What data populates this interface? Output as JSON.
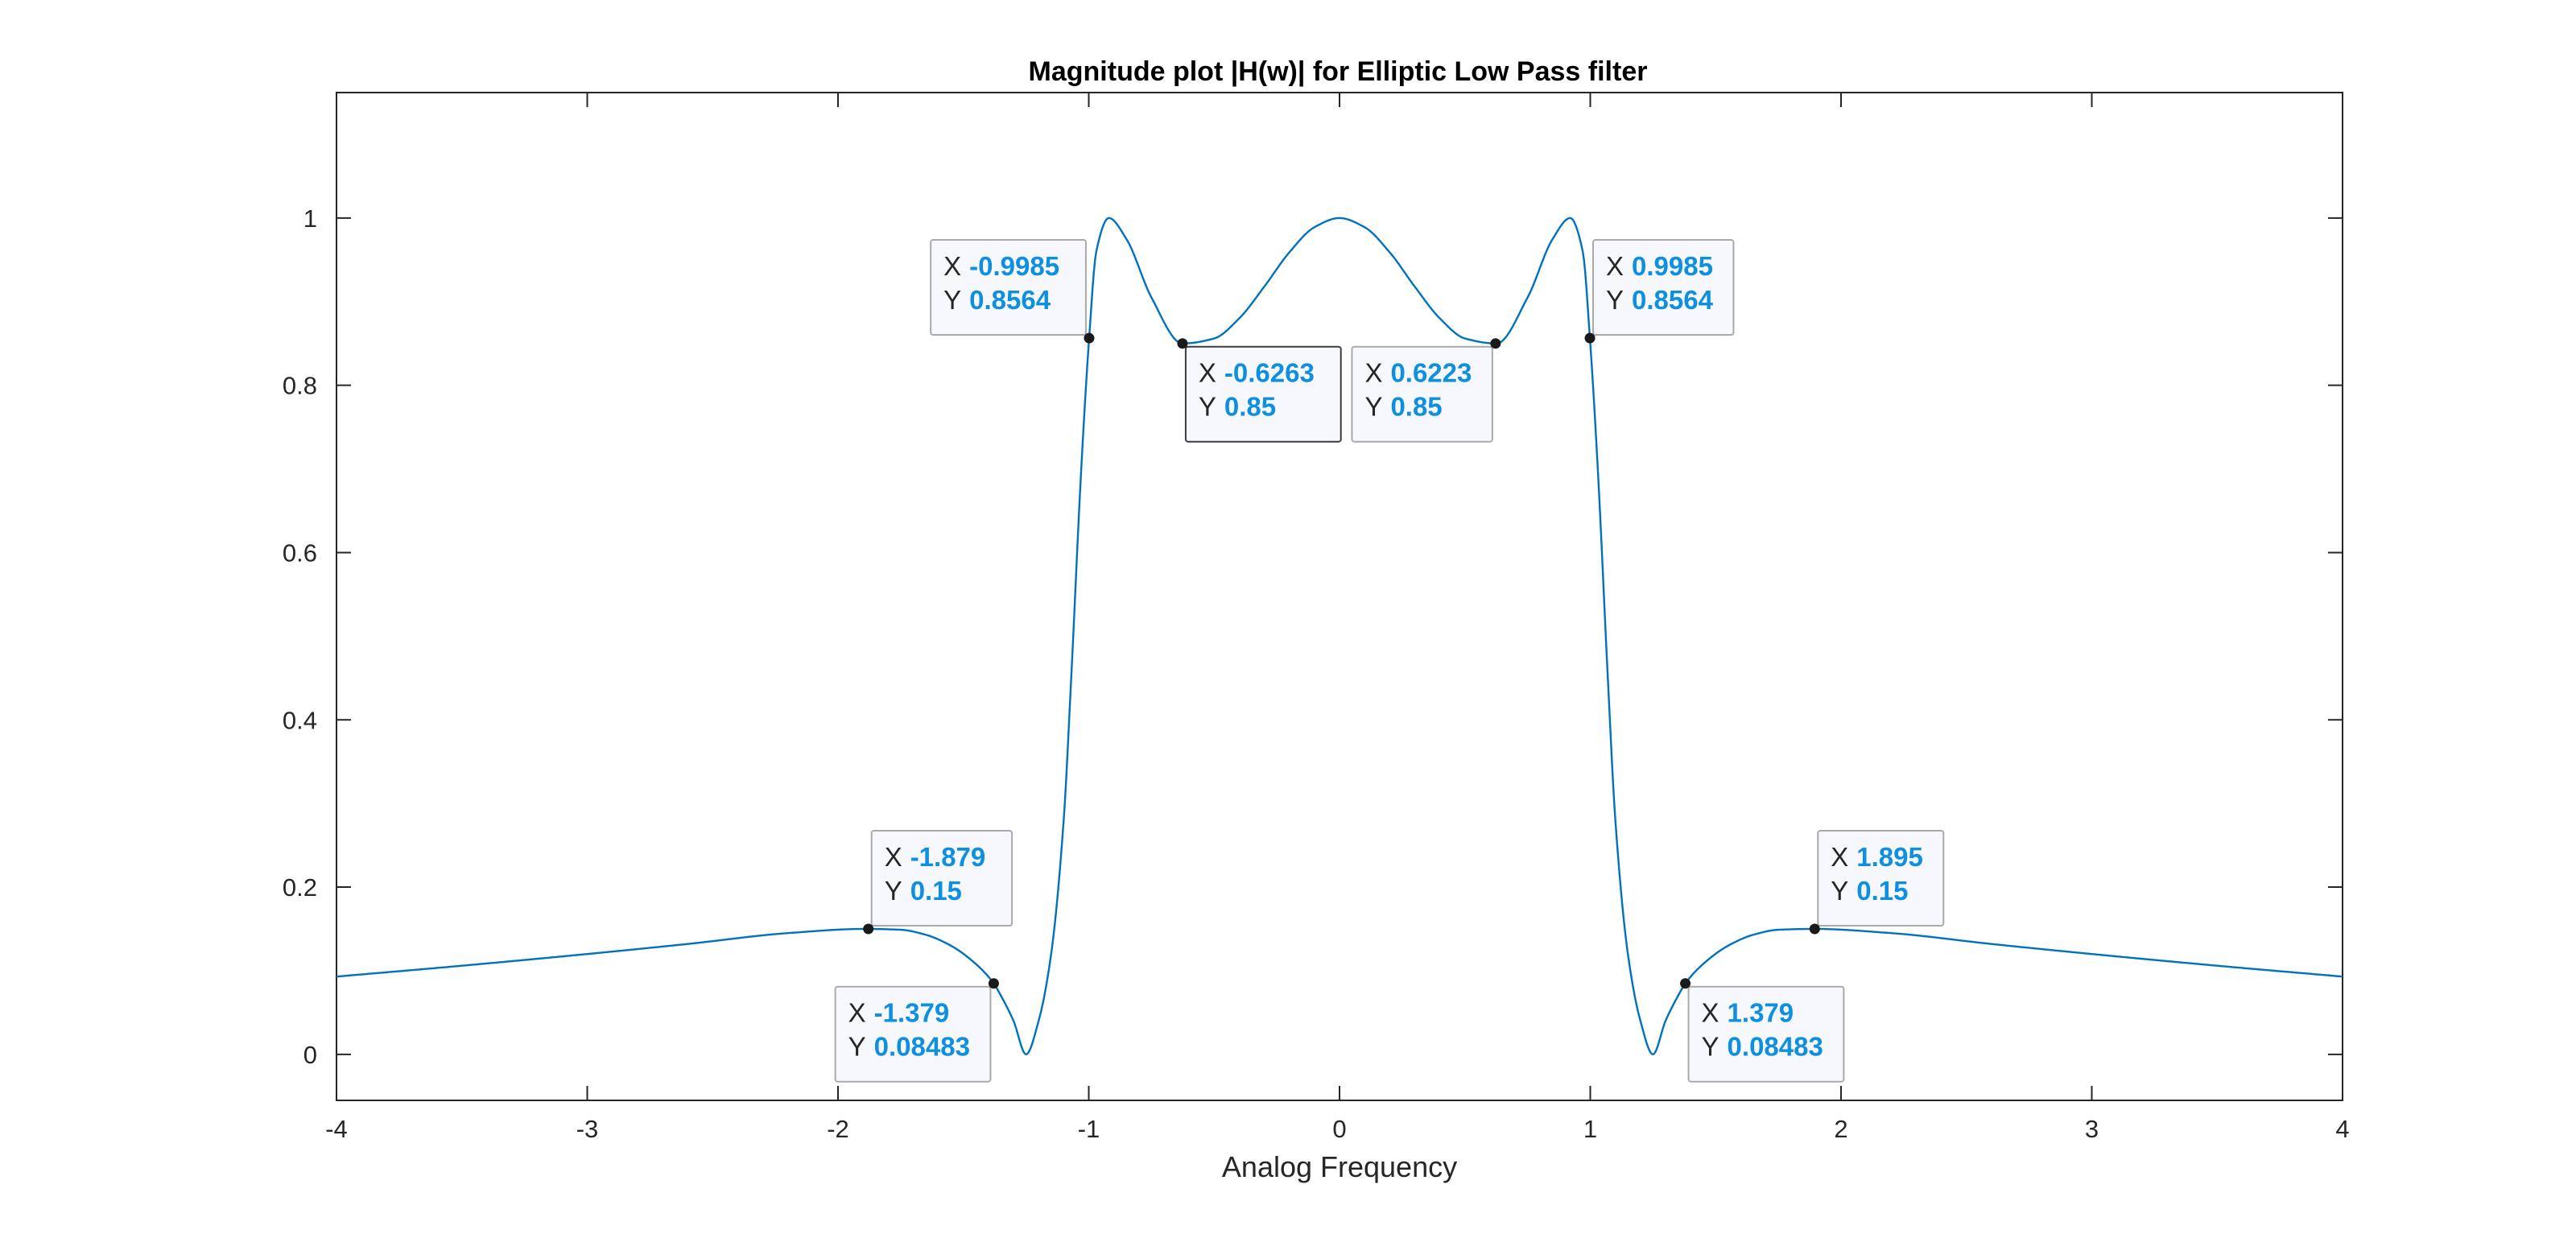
{
  "chart_data": {
    "type": "line",
    "title": "Magnitude plot |H(w)| for Elliptic Low Pass filter",
    "xlabel": "Analog Frequency",
    "ylabel": "",
    "xlim": [
      -4,
      4
    ],
    "ylim": [
      -0.055,
      1.15
    ],
    "xticks": [
      -4,
      -3,
      -2,
      -1,
      0,
      1,
      2,
      3,
      4
    ],
    "xtick_labels": [
      "-4",
      "-3",
      "-2",
      "-1",
      "0",
      "1",
      "2",
      "3",
      "4"
    ],
    "yticks": [
      0,
      0.2,
      0.4,
      0.6,
      0.8,
      1
    ],
    "ytick_labels": [
      "0",
      "0.2",
      "0.4",
      "0.6",
      "0.8",
      "1"
    ],
    "grid": false,
    "box": true,
    "series": [
      {
        "color": "#0072BD",
        "x": [
          0,
          0.1,
          0.2,
          0.3,
          0.4,
          0.5,
          0.6263,
          0.75,
          0.85,
          0.92,
          0.97,
          0.9985,
          1.03,
          1.07,
          1.1,
          1.15,
          1.2,
          1.25,
          1.3,
          1.35,
          1.379,
          1.45,
          1.55,
          1.65,
          1.75,
          1.895,
          2.2,
          2.6,
          3.0,
          3.5,
          4.0
        ],
        "y": [
          1.0,
          0.989,
          0.959,
          0.918,
          0.88,
          0.856,
          0.85,
          0.905,
          0.975,
          1.0,
          0.96,
          0.8564,
          0.7,
          0.45,
          0.28,
          0.12,
          0.04,
          0.0,
          0.04,
          0.07,
          0.08483,
          0.108,
          0.13,
          0.143,
          0.149,
          0.15,
          0.145,
          0.132,
          0.12,
          0.106,
          0.093
        ],
        "symmetric_about_zero": true
      }
    ],
    "datatips": [
      {
        "x": -0.9985,
        "y": 0.8564,
        "x_text": "-0.9985",
        "y_text": "0.8564",
        "placement": "top-left",
        "selected": false
      },
      {
        "x": -0.6263,
        "y": 0.85,
        "x_text": "-0.6263",
        "y_text": "0.85",
        "placement": "bottom-right",
        "selected": true
      },
      {
        "x": 0.6223,
        "y": 0.85,
        "x_text": "0.6223",
        "y_text": "0.85",
        "placement": "bottom-left",
        "selected": false
      },
      {
        "x": 0.9985,
        "y": 0.8564,
        "x_text": "0.9985",
        "y_text": "0.8564",
        "placement": "top-right",
        "selected": false
      },
      {
        "x": -1.879,
        "y": 0.15,
        "x_text": "-1.879",
        "y_text": "0.15",
        "placement": "top-right",
        "selected": false
      },
      {
        "x": -1.379,
        "y": 0.08483,
        "x_text": "-1.379",
        "y_text": "0.08483",
        "placement": "bottom-left",
        "selected": false
      },
      {
        "x": 1.379,
        "y": 0.08483,
        "x_text": "1.379",
        "y_text": "0.08483",
        "placement": "bottom-right",
        "selected": false
      },
      {
        "x": 1.895,
        "y": 0.15,
        "x_text": "1.895",
        "y_text": "0.15",
        "placement": "top-right",
        "selected": false
      }
    ],
    "datatip_labels": {
      "x_key": "X",
      "y_key": "Y"
    },
    "colors": {
      "line": "#0072BD",
      "datatip_value": "#0E8FE0",
      "axis": "#262626"
    }
  }
}
